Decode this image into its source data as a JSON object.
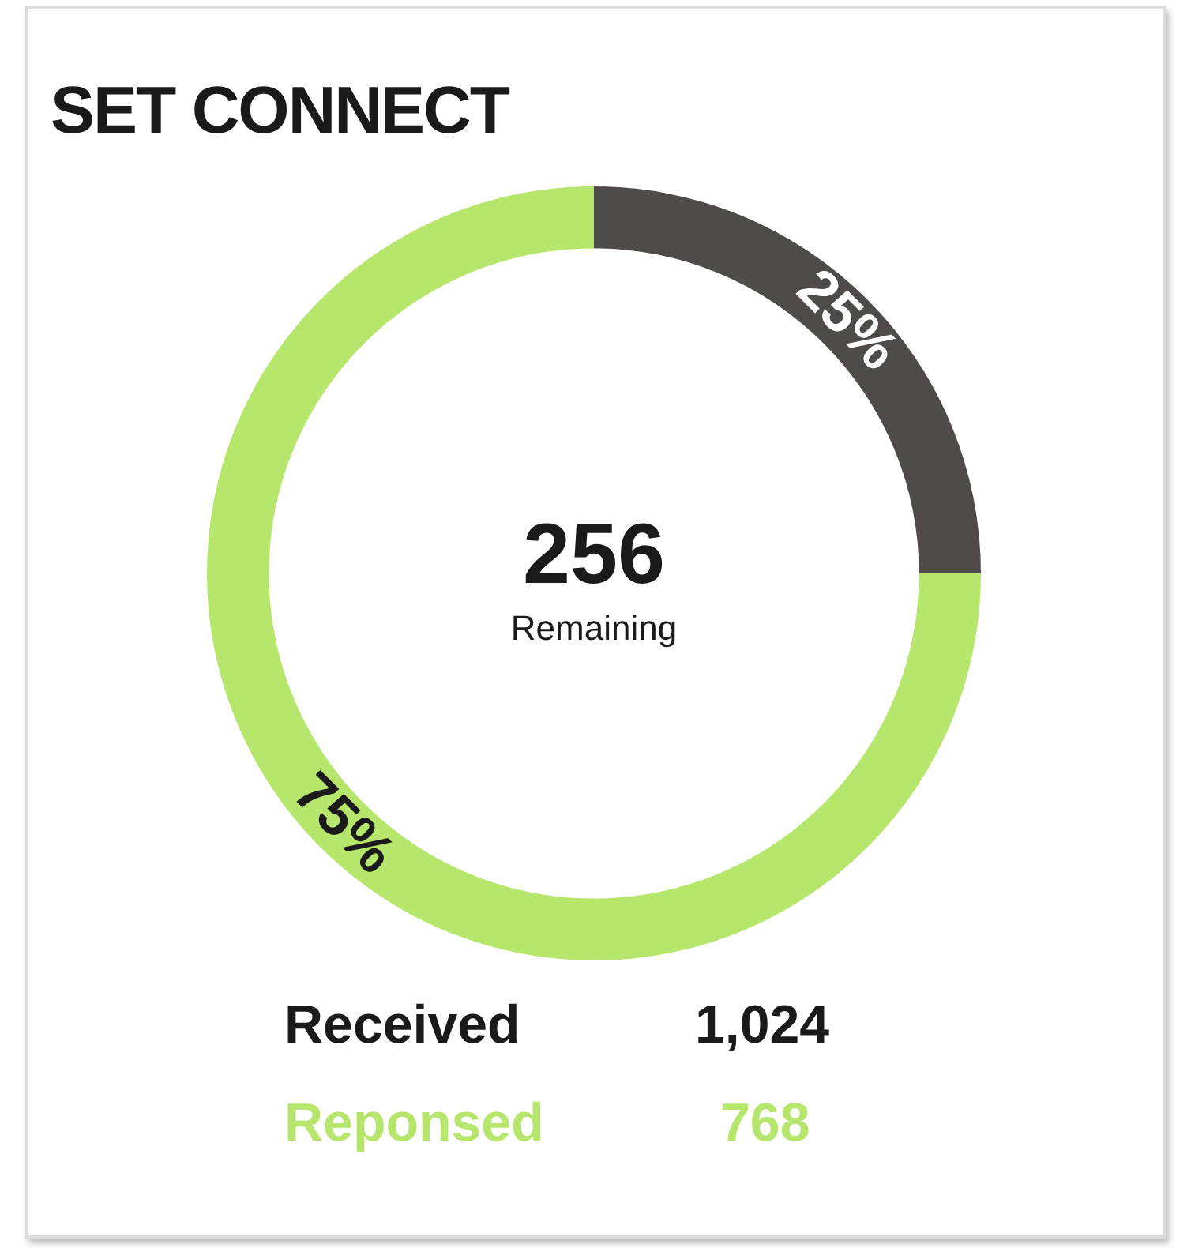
{
  "chart_data": {
    "type": "donut",
    "title": "SET CONNECT",
    "categories": [
      null,
      null
    ],
    "values": [
      25,
      75
    ],
    "colors": [
      "#4f4b4a",
      "#b6e66b"
    ],
    "value_labels": [
      "25%",
      "75%"
    ],
    "legend": false,
    "annotations": [
      "256",
      "Remaining",
      "Received",
      "1,024",
      "Reponsed",
      "768"
    ]
  }
}
